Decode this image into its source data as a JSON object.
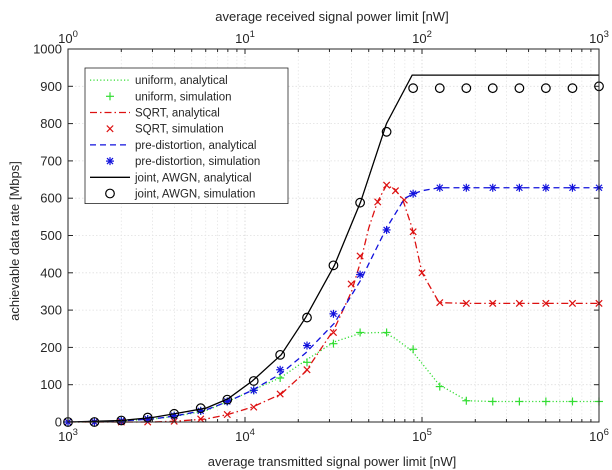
{
  "chart_data": {
    "type": "line",
    "xscale": "log",
    "xlim": [
      1000,
      1000000
    ],
    "ylim": [
      0,
      1000
    ],
    "grid": true,
    "legend_position": "top-left",
    "xlabel": "average transmitted signal power limit [nW]",
    "ylabel": "achievable data rate [Mbps]",
    "top_xlabel": "average received signal power limit [nW]",
    "top_xlim": [
      1,
      1000
    ],
    "yticks": [
      "0",
      "100",
      "200",
      "300",
      "400",
      "500",
      "600",
      "700",
      "800",
      "900",
      "1000"
    ],
    "bottom_ticks": [
      {
        "value": 1000,
        "base": "10",
        "exp": "3"
      },
      {
        "value": 10000,
        "base": "10",
        "exp": "4"
      },
      {
        "value": 100000,
        "base": "10",
        "exp": "5"
      },
      {
        "value": 1000000,
        "base": "10",
        "exp": "6"
      }
    ],
    "top_ticks": [
      {
        "value": 1,
        "base": "10",
        "exp": "0"
      },
      {
        "value": 10,
        "base": "10",
        "exp": "1"
      },
      {
        "value": 100,
        "base": "10",
        "exp": "2"
      },
      {
        "value": 1000,
        "base": "10",
        "exp": "3"
      }
    ],
    "series": [
      {
        "name": "uniform, analytical",
        "color": "#33dd33",
        "style": "dotted",
        "x": [
          1000,
          1500,
          2000,
          3000,
          4000,
          6000,
          8000,
          11000,
          16000,
          22000,
          32000,
          45000,
          56000,
          62000,
          70000,
          88000,
          125000,
          180000,
          250000,
          500000,
          1000000
        ],
        "y": [
          0,
          0,
          3,
          8,
          15,
          30,
          55,
          85,
          120,
          165,
          215,
          238,
          240,
          238,
          225,
          190,
          100,
          57,
          55,
          55,
          55
        ]
      },
      {
        "name": "uniform, simulation",
        "color": "#33dd33",
        "marker": "plus",
        "x": [
          1000,
          1410,
          2000,
          2820,
          3980,
          5620,
          7940,
          11200,
          15800,
          22400,
          31600,
          44700,
          63100,
          89100,
          126000,
          178000,
          251000,
          355000,
          501000,
          708000,
          1000000
        ],
        "y": [
          0,
          0,
          3,
          8,
          17,
          30,
          55,
          85,
          118,
          160,
          210,
          240,
          240,
          195,
          95,
          57,
          55,
          55,
          55,
          55,
          55
        ]
      },
      {
        "name": "SQRT, analytical",
        "color": "#dd1111",
        "style": "dashdot",
        "x": [
          1000,
          2000,
          3000,
          4000,
          6000,
          8000,
          11000,
          16000,
          22000,
          32000,
          40000,
          45000,
          50000,
          56000,
          63000,
          66000,
          70000,
          78000,
          88000,
          100000,
          125000,
          180000,
          1000000
        ],
        "y": [
          0,
          0,
          0,
          2,
          8,
          20,
          40,
          75,
          135,
          250,
          350,
          430,
          520,
          590,
          635,
          630,
          625,
          595,
          520,
          400,
          320,
          318,
          318
        ]
      },
      {
        "name": "SQRT, simulation",
        "color": "#dd1111",
        "marker": "x",
        "x": [
          1000,
          1410,
          2000,
          2820,
          3980,
          5620,
          7940,
          11200,
          15800,
          22400,
          31600,
          39800,
          44700,
          56200,
          63100,
          70800,
          79400,
          89100,
          100000,
          126000,
          178000,
          251000,
          355000,
          501000,
          708000,
          1000000
        ],
        "y": [
          0,
          0,
          0,
          0,
          2,
          8,
          20,
          40,
          75,
          140,
          240,
          370,
          445,
          590,
          635,
          620,
          595,
          510,
          400,
          320,
          318,
          318,
          318,
          318,
          318,
          318
        ]
      },
      {
        "name": "pre-distortion, analytical",
        "color": "#1111dd",
        "style": "dashed",
        "x": [
          1000,
          2000,
          3000,
          4000,
          6000,
          8000,
          11000,
          16000,
          22000,
          32000,
          45000,
          63000,
          80000,
          90000,
          100000,
          125000,
          180000,
          1000000
        ],
        "y": [
          0,
          3,
          8,
          16,
          32,
          55,
          85,
          130,
          185,
          265,
          380,
          520,
          600,
          612,
          620,
          628,
          628,
          628
        ]
      },
      {
        "name": "pre-distortion, simulation",
        "color": "#1111dd",
        "marker": "star",
        "x": [
          1000,
          1410,
          2000,
          2820,
          3980,
          5620,
          7940,
          11200,
          15800,
          22400,
          31600,
          44700,
          63100,
          89100,
          126000,
          178000,
          251000,
          355000,
          501000,
          708000,
          1000000
        ],
        "y": [
          0,
          0,
          3,
          8,
          17,
          30,
          55,
          85,
          140,
          205,
          290,
          395,
          515,
          612,
          628,
          628,
          628,
          628,
          628,
          628,
          628
        ]
      },
      {
        "name": "joint, AWGN, analytical",
        "color": "#000000",
        "style": "solid",
        "x": [
          1000,
          2000,
          3000,
          4000,
          6000,
          8000,
          11000,
          16000,
          22000,
          32000,
          45000,
          63000,
          88000,
          1000000
        ],
        "y": [
          0,
          4,
          12,
          22,
          37,
          62,
          110,
          180,
          280,
          420,
          590,
          800,
          930,
          930
        ]
      },
      {
        "name": "joint, AWGN, simulation",
        "color": "#000000",
        "marker": "circle",
        "x": [
          1000,
          1410,
          2000,
          2820,
          3980,
          5620,
          7940,
          11200,
          15800,
          22400,
          31600,
          44700,
          63100,
          89100,
          126000,
          178000,
          251000,
          355000,
          501000,
          708000,
          1000000
        ],
        "y": [
          0,
          0,
          4,
          12,
          22,
          37,
          60,
          110,
          180,
          280,
          420,
          588,
          778,
          895,
          895,
          895,
          895,
          895,
          895,
          895,
          900
        ]
      }
    ]
  }
}
